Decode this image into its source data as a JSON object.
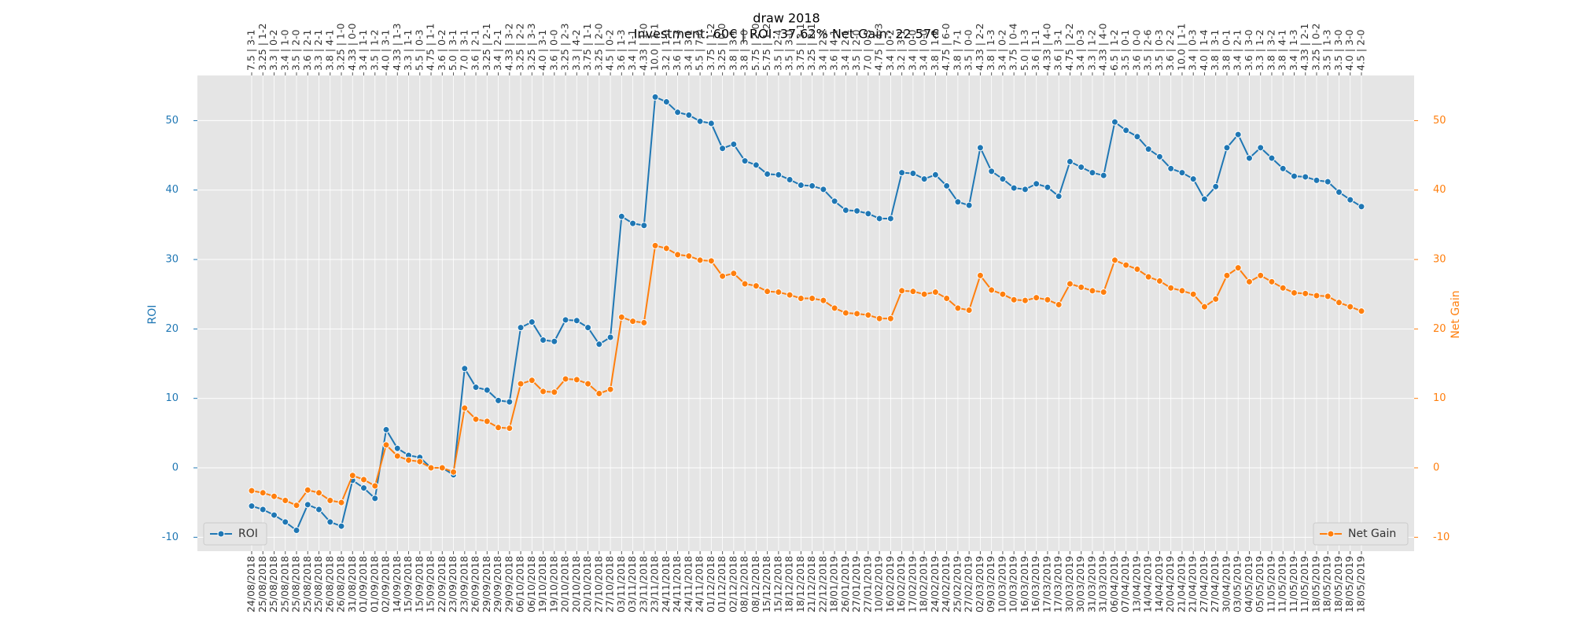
{
  "chart_data": {
    "type": "line",
    "title": "draw 2018",
    "subtitle": "Investment: 60€ | ROI: 37.62% Net Gain: 22.57€",
    "y_label": "ROI",
    "y2_label": "Net Gain",
    "categories": [
      "24/08/2018",
      "25/08/2018",
      "25/08/2018",
      "25/08/2018",
      "25/08/2018",
      "25/08/2018",
      "25/08/2018",
      "26/08/2018",
      "26/08/2018",
      "31/08/2018",
      "01/09/2018",
      "01/09/2018",
      "02/09/2018",
      "14/09/2018",
      "15/09/2018",
      "15/09/2018",
      "15/09/2018",
      "22/09/2018",
      "23/09/2018",
      "23/09/2018",
      "26/09/2018",
      "29/09/2018",
      "29/09/2018",
      "29/09/2018",
      "06/10/2018",
      "06/10/2018",
      "19/10/2018",
      "19/10/2018",
      "20/10/2018",
      "20/10/2018",
      "20/10/2018",
      "27/10/2018",
      "27/10/2018",
      "03/11/2018",
      "03/11/2018",
      "23/11/2018",
      "23/11/2018",
      "24/11/2018",
      "24/11/2018",
      "24/11/2018",
      "24/11/2018",
      "01/12/2018",
      "01/12/2018",
      "02/12/2018",
      "08/12/2018",
      "08/12/2018",
      "15/12/2018",
      "15/12/2018",
      "18/12/2018",
      "18/12/2018",
      "21/12/2018",
      "22/12/2018",
      "18/01/2019",
      "26/01/2019",
      "27/01/2019",
      "27/01/2019",
      "10/02/2019",
      "16/02/2019",
      "16/02/2019",
      "17/02/2019",
      "18/02/2019",
      "24/02/2019",
      "24/02/2019",
      "25/02/2019",
      "27/02/2019",
      "02/03/2019",
      "09/03/2019",
      "10/03/2019",
      "10/03/2019",
      "16/03/2019",
      "16/03/2019",
      "17/03/2019",
      "17/03/2019",
      "30/03/2019",
      "30/03/2019",
      "31/03/2019",
      "31/03/2019",
      "06/04/2019",
      "07/04/2019",
      "13/04/2019",
      "14/04/2019",
      "14/04/2019",
      "20/04/2019",
      "21/04/2019",
      "21/04/2019",
      "27/04/2019",
      "27/04/2019",
      "30/04/2019",
      "03/05/2019",
      "04/05/2019",
      "05/05/2019",
      "11/05/2019",
      "11/05/2019",
      "11/05/2019",
      "11/05/2019",
      "18/05/2019",
      "18/05/2019",
      "18/05/2019",
      "18/05/2019",
      "18/05/2019"
    ],
    "top_categories": [
      "7.5 | 3-1",
      "3.25 | 1-2",
      "3.3 | 0-2",
      "3.4 | 1-0",
      "3.5 | 2-0",
      "3.6 | 2-1",
      "3.3 | 2-1",
      "3.8 | 4-1",
      "3.25 | 1-0",
      "4.33 | 0-0",
      "3.4 | 1-1",
      "3.5 | 1-2",
      "4.0 | 3-1",
      "4.33 | 1-3",
      "3.3 | 1-1",
      "5.5 | 0-3",
      "4.75 | 1-1",
      "3.6 | 0-2",
      "5.0 | 3-1",
      "7.0 | 3-1",
      "3.6 | 2-1",
      "3.25 | 2-1",
      "3.4 | 2-1",
      "4.33 | 3-2",
      "3.25 | 2-2",
      "3.25 | 3-3",
      "4.0 | 3-1",
      "3.6 | 0-0",
      "3.25 | 2-3",
      "3.3 | 4-2",
      "3.75 | 1-1",
      "3.25 | 2-0",
      "4.5 | 0-2",
      "3.6 | 1-3",
      "3.4 | 1-1",
      "4.33 | 1-0",
      "10.0 | 1-1",
      "3.2 | 1-0",
      "3.6 | 1-3",
      "3.4 | 3-1",
      "5.5 | 7-0",
      "3.75 | 1-2",
      "3.25 | 0-0",
      "3.8 | 3-1",
      "3.8 | 3-0",
      "5.75 | 2-0",
      "5.75 | 1-2",
      "3.5 | 2-4",
      "3.5 | 3-0",
      "3.75 | 3-1",
      "3.25 | 2-1",
      "3.4 | 2-2",
      "3.6 | 4-1",
      "3.4 | 2-1",
      "3.5 | 2-0",
      "7.0 | 0-3",
      "4.75 | 4-3",
      "3.4 | 0-2",
      "3.2 | 3-1",
      "3.4 | 0-0",
      "3.4 | 0-0",
      "3.8 | 1-2",
      "4.75 | 6-0",
      "3.8 | 7-1",
      "3.5 | 0-0",
      "4.33 | 2-2",
      "3.8 | 1-3",
      "3.4 | 0-2",
      "3.75 | 0-4",
      "5.0 | 1-3",
      "3.6 | 1-1",
      "4.33 | 4-0",
      "3.6 | 3-1",
      "4.75 | 2-2",
      "3.4 | 0-3",
      "3.3 | 1-2",
      "4.33 | 4-0",
      "6.5 | 1-2",
      "3.5 | 0-1",
      "3.6 | 0-0",
      "3.5 | 2-6",
      "3.5 | 0-3",
      "3.6 | 2-2",
      "10.0 | 1-1",
      "3.4 | 0-3",
      "4.0 | 1-4",
      "3.8 | 3-1",
      "3.8 | 0-1",
      "3.4 | 2-1",
      "3.6 | 3-0",
      "3.3 | 1-2",
      "3.8 | 3-2",
      "3.8 | 4-1",
      "3.4 | 1-3",
      "4.33 | 2-1",
      "3.25 | 0-2",
      "3.5 | 1-3",
      "3.5 | 3-0",
      "4.0 | 3-0",
      "4.5 | 2-0"
    ],
    "series": [
      {
        "name": "ROI",
        "color": "#1f77b4",
        "legend": "lower left",
        "values": [
          -5.5,
          -6,
          -6.8,
          -7.8,
          -9,
          -5.3,
          -6,
          -7.8,
          -8.4,
          -1.8,
          -2.9,
          -4.4,
          5.5,
          2.8,
          1.8,
          1.5,
          0,
          0,
          -1,
          14.3,
          11.6,
          11.2,
          9.7,
          9.5,
          20.2,
          21,
          18.4,
          18.2,
          21.3,
          21.2,
          20.2,
          17.8,
          18.8,
          36.2,
          35.2,
          34.9,
          53.4,
          52.7,
          51.2,
          50.8,
          49.9,
          49.6,
          46,
          46.6,
          44.2,
          43.6,
          42.3,
          42.2,
          41.5,
          40.7,
          40.6,
          40.1,
          38.4,
          37.1,
          37,
          36.6,
          35.9,
          35.9,
          42.5,
          42.4,
          41.6,
          42.2,
          40.6,
          38.3,
          37.8,
          46.1,
          42.7,
          41.6,
          40.3,
          40.1,
          40.9,
          40.4,
          39.1,
          44.1,
          43.3,
          42.5,
          42.1,
          49.8,
          48.6,
          47.7,
          45.9,
          44.8,
          43.1,
          42.5,
          41.6,
          38.7,
          40.5,
          46.1,
          48,
          44.6,
          46.1,
          44.6,
          43.1,
          42,
          41.9,
          41.4,
          41.2,
          39.7,
          38.6,
          37.62
        ]
      },
      {
        "name": "Net Gain",
        "color": "#ff7f0e",
        "axis": "y2",
        "legend": "lower right",
        "values": [
          -3.3,
          -3.6,
          -4.1,
          -4.7,
          -5.4,
          -3.2,
          -3.6,
          -4.7,
          -5,
          -1.1,
          -1.7,
          -2.6,
          3.3,
          1.7,
          1.1,
          0.9,
          0,
          0,
          -0.6,
          8.6,
          7,
          6.7,
          5.8,
          5.7,
          12.1,
          12.6,
          11,
          10.9,
          12.8,
          12.7,
          12.1,
          10.7,
          11.3,
          21.7,
          21.1,
          20.9,
          32,
          31.6,
          30.7,
          30.5,
          29.9,
          29.8,
          27.6,
          28,
          26.5,
          26.2,
          25.4,
          25.3,
          24.9,
          24.4,
          24.4,
          24.1,
          23,
          22.3,
          22.2,
          22,
          21.5,
          21.5,
          25.5,
          25.4,
          25,
          25.3,
          24.4,
          23,
          22.7,
          27.7,
          25.6,
          25,
          24.2,
          24.1,
          24.5,
          24.2,
          23.5,
          26.5,
          26,
          25.5,
          25.3,
          29.9,
          29.2,
          28.6,
          27.5,
          26.9,
          25.9,
          25.5,
          25,
          23.2,
          24.3,
          27.7,
          28.8,
          26.8,
          27.7,
          26.8,
          25.9,
          25.2,
          25.1,
          24.8,
          24.7,
          23.8,
          23.2,
          22.57
        ]
      }
    ],
    "ylim": [
      -12,
      56.5
    ],
    "yticks": [
      -10,
      0,
      10,
      20,
      30,
      40,
      50
    ],
    "y2lim": [
      -12,
      56.5
    ],
    "y2ticks": [
      -10,
      0,
      10,
      20,
      30,
      40,
      50
    ],
    "grid": true
  }
}
